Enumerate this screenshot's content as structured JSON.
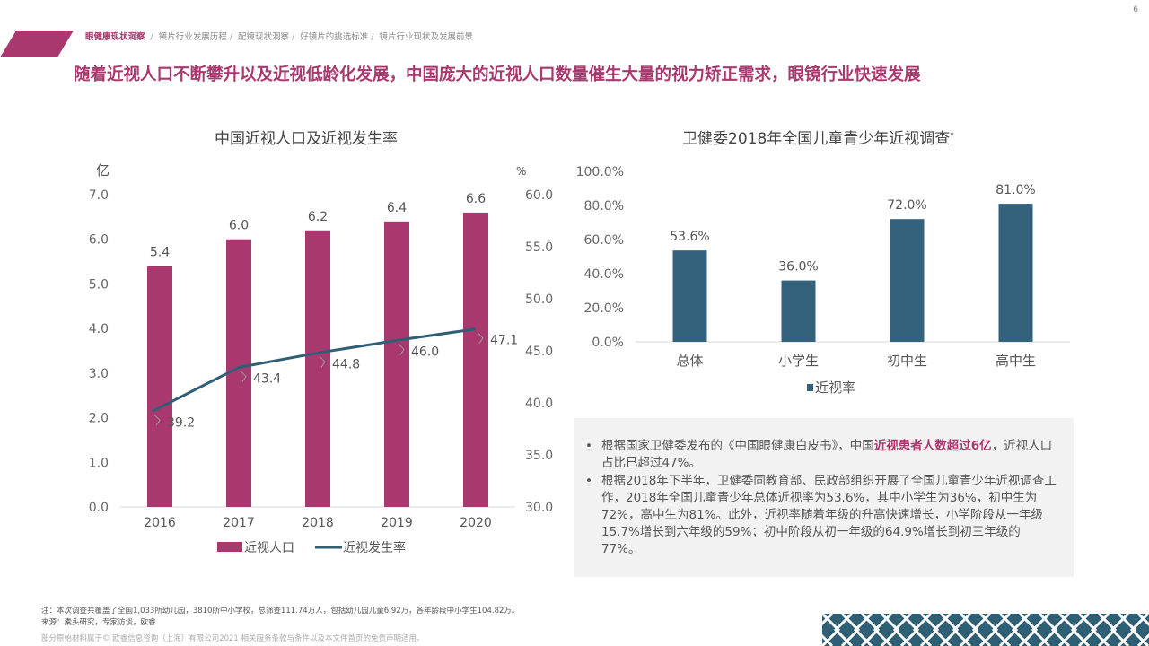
{
  "page_number": "6",
  "breadcrumb": {
    "active": "眼健康现状洞察",
    "items": [
      "镜片行业发展历程",
      "配镜现状洞察",
      "好镜片的挑选标准",
      "镜片行业现状及发展前景"
    ]
  },
  "headline": "随着近视人口不断攀升以及近视低龄化发展，中国庞大的近视人口数量催生大量的视力矫正需求，眼镜行业快速发展",
  "colors": {
    "brand": "#a8386d",
    "teal": "#2f5f74",
    "bar_blue": "#34617b"
  },
  "chart_data": [
    {
      "type": "bar",
      "title": "中国近视人口及近视发生率",
      "categories": [
        "2016",
        "2017",
        "2018",
        "2019",
        "2020"
      ],
      "y_unit_left": "亿",
      "y_unit_right": "%",
      "ylim_left": [
        0,
        7
      ],
      "yticks_left": [
        "0.0",
        "1.0",
        "2.0",
        "3.0",
        "4.0",
        "5.0",
        "6.0",
        "7.0"
      ],
      "ylim_right": [
        30,
        60
      ],
      "yticks_right": [
        "30.0",
        "35.0",
        "40.0",
        "45.0",
        "50.0",
        "55.0",
        "60.0"
      ],
      "series": [
        {
          "name": "近视人口",
          "type": "bar",
          "axis": "left",
          "values": [
            5.4,
            6.0,
            6.2,
            6.4,
            6.6
          ],
          "labels": [
            "5.4",
            "6.0",
            "6.2",
            "6.4",
            "6.6"
          ]
        },
        {
          "name": "近视发生率",
          "type": "line",
          "axis": "right",
          "values": [
            39.2,
            43.4,
            44.8,
            46.0,
            47.1
          ],
          "labels": [
            "39.2",
            "43.4",
            "44.8",
            "46.0",
            "47.1"
          ]
        }
      ],
      "legend": "bottom"
    },
    {
      "type": "bar",
      "title": "卫健委2018年全国儿童青少年近视调查",
      "title_mark": "*",
      "categories": [
        "总体",
        "小学生",
        "初中生",
        "高中生"
      ],
      "ylim": [
        0,
        100
      ],
      "yticks": [
        "0.0%",
        "20.0%",
        "40.0%",
        "60.0%",
        "80.0%",
        "100.0%"
      ],
      "series": [
        {
          "name": "近视率",
          "values": [
            53.6,
            36.0,
            72.0,
            81.0
          ],
          "labels": [
            "53.6%",
            "36.0%",
            "72.0%",
            "81.0%"
          ]
        }
      ],
      "legend": "bottom"
    }
  ],
  "info": {
    "p1_pre": "根据国家卫健委发布的《中国眼健康白皮书》，中国",
    "p1_highlight": "近视患者人数超过6亿",
    "p1_post": "，近视人口占比已超过47%。",
    "p2": "根据2018年下半年，卫健委同教育部、民政部组织开展了全国儿童青少年近视调查工作，2018年全国儿童青少年总体近视率为53.6%，其中小学生为36%，初中生为72%，高中生为81%。此外，近视率随着年级的升高快速增长，小学阶段从一年级15.7%增长到六年级的59%；初中阶段从初一年级的64.9%增长到初三年级的77%。"
  },
  "footer": {
    "note": "注：本次调查共覆盖了全国1,033所幼儿园，3810所中小学校，总筛查111.74万人，包括幼儿园儿童6.92万，各年龄段中小学生104.82万。",
    "source": "来源：橐头研究，专家访谈，欧睿",
    "disclaimer": "部分原始材料属于© 欧睿信息咨询（上海）有限公司2021 相关服务条款与条件以及本文件首页的免责声明适用。"
  }
}
